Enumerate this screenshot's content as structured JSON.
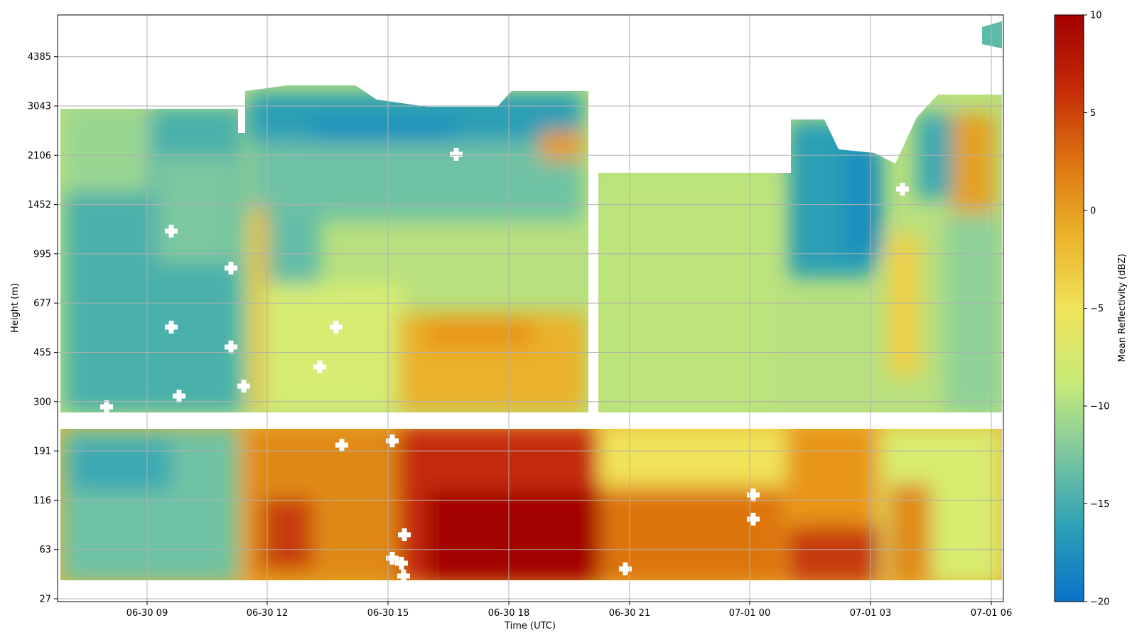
{
  "chart_data": {
    "type": "heatmap",
    "title": "",
    "xlabel": "Time (UTC)",
    "ylabel": "Height (m)",
    "x_ticks": [
      "06-30 09",
      "06-30 12",
      "06-30 15",
      "06-30 18",
      "06-30 21",
      "07-01 00",
      "07-01 03",
      "07-01 06"
    ],
    "y_ticks": [
      "27",
      "63",
      "116",
      "191",
      "300",
      "455",
      "677",
      "995",
      "1452",
      "2106",
      "3043",
      "4385"
    ],
    "grid": true,
    "colorbar": {
      "label": "Mean Reflectivity (dBZ)",
      "range": [
        -20,
        10
      ],
      "ticks": [
        "10",
        "5",
        "0",
        "−5",
        "−10",
        "−15",
        "−20"
      ],
      "colors": [
        "#0b72c8",
        "#2a9fb6",
        "#7cc7a0",
        "#c8ea78",
        "#f0e35a",
        "#eab22a",
        "#dd7410",
        "#c42a08",
        "#a30000"
      ]
    },
    "time_range": [
      "06-30 06:50",
      "07-01 06:20"
    ],
    "data_gap_time": "06-30 20:30",
    "data_gap_height_m": 250,
    "regions": [
      {
        "time": [
          "06-30 07",
          "06-30 11"
        ],
        "height_m": [
          "40",
          "3000"
        ],
        "mean_dbz": -13
      },
      {
        "time": [
          "06-30 11",
          "06-30 12"
        ],
        "height_m": [
          "40",
          "2600"
        ],
        "mean_dbz": -14
      },
      {
        "time": [
          "06-30 12",
          "06-30 15"
        ],
        "height_m": [
          "40",
          "250"
        ],
        "mean_dbz": -1
      },
      {
        "time": [
          "06-30 12",
          "06-30 20:30"
        ],
        "height_m": [
          "1500",
          "3300"
        ],
        "mean_dbz": -13
      },
      {
        "time": [
          "06-30 15",
          "06-30 20:30"
        ],
        "height_m": [
          "300",
          "800"
        ],
        "mean_dbz": -4
      },
      {
        "time": [
          "06-30 15",
          "06-30 20:30"
        ],
        "height_m": [
          "40",
          "250"
        ],
        "mean_dbz": 7
      },
      {
        "time": [
          "06-30 20:30",
          "07-01 01"
        ],
        "height_m": [
          "300",
          "1900"
        ],
        "mean_dbz": -9
      },
      {
        "time": [
          "06-30 20:30",
          "07-01 04"
        ],
        "height_m": [
          "40",
          "250"
        ],
        "mean_dbz": 1
      },
      {
        "time": [
          "07-01 01",
          "07-01 04"
        ],
        "height_m": [
          "800",
          "2600"
        ],
        "mean_dbz": -14
      },
      {
        "time": [
          "07-01 05",
          "07-01 06"
        ],
        "height_m": [
          "1500",
          "3000"
        ],
        "mean_dbz": -3
      }
    ]
  }
}
